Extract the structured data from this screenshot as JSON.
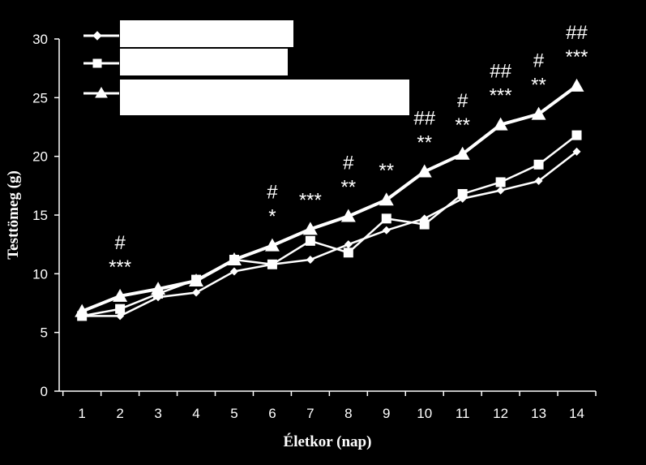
{
  "chart_data": {
    "type": "line",
    "x_label": "Életkor (nap)",
    "y_label": "Testtömeg (g)",
    "x": [
      1,
      2,
      3,
      4,
      5,
      6,
      7,
      8,
      9,
      10,
      11,
      12,
      13,
      14
    ],
    "xlim": [
      0.4,
      14.5
    ],
    "xticks": [
      1,
      2,
      3,
      4,
      5,
      6,
      7,
      8,
      9,
      10,
      11,
      12,
      13,
      14
    ],
    "ylim": [
      0,
      30
    ],
    "yticks": [
      0,
      5,
      10,
      15,
      20,
      25,
      30
    ],
    "series": [
      {
        "color": "#ffffff",
        "marker": "diamond",
        "values": [
          6.4,
          6.4,
          8.0,
          8.4,
          10.2,
          10.8,
          11.2,
          12.5,
          13.7,
          14.7,
          16.4,
          17.1,
          17.9,
          20.4
        ]
      },
      {
        "color": "#ffffff",
        "marker": "square",
        "values": [
          6.4,
          7.0,
          8.3,
          9.5,
          11.2,
          10.8,
          12.8,
          11.8,
          14.7,
          14.2,
          16.8,
          17.8,
          19.3,
          21.8
        ]
      },
      {
        "color": "#ffffff",
        "marker": "triangle",
        "values": [
          6.8,
          8.1,
          8.7,
          9.4,
          11.2,
          12.4,
          13.8,
          14.9,
          16.3,
          18.7,
          20.2,
          22.7,
          23.6,
          26.0
        ]
      }
    ],
    "annotations": [
      {
        "x": 2,
        "text": [
          "#",
          "***"
        ]
      },
      {
        "x": 6,
        "text": [
          "#",
          "*"
        ]
      },
      {
        "x": 7,
        "text": [
          "***"
        ]
      },
      {
        "x": 8,
        "text": [
          "#",
          "**"
        ]
      },
      {
        "x": 9,
        "text": [
          "**"
        ]
      },
      {
        "x": 10,
        "text": [
          "##",
          "**"
        ]
      },
      {
        "x": 11,
        "text": [
          "#",
          "**"
        ]
      },
      {
        "x": 12,
        "text": [
          "##",
          "***"
        ]
      },
      {
        "x": 13,
        "text": [
          "#",
          "**"
        ]
      },
      {
        "x": 14,
        "text": [
          "##",
          "***"
        ]
      }
    ]
  }
}
